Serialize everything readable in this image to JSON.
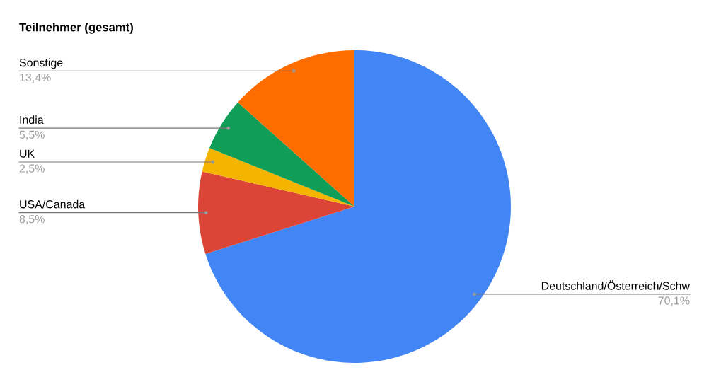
{
  "chart_data": {
    "type": "pie",
    "title": "Teilnehmer (gesamt)",
    "categories": [
      "Deutschland/Österreich/Schw",
      "USA/Canada",
      "UK",
      "India",
      "Sonstige"
    ],
    "values": [
      70.1,
      8.5,
      2.5,
      5.5,
      13.4
    ],
    "value_labels": [
      "70,1%",
      "8,5%",
      "2,5%",
      "5,5%",
      "13,4%"
    ],
    "colors": [
      "#4285f4",
      "#db4437",
      "#f4b400",
      "#0f9d58",
      "#ff6d01"
    ],
    "legend": false
  }
}
